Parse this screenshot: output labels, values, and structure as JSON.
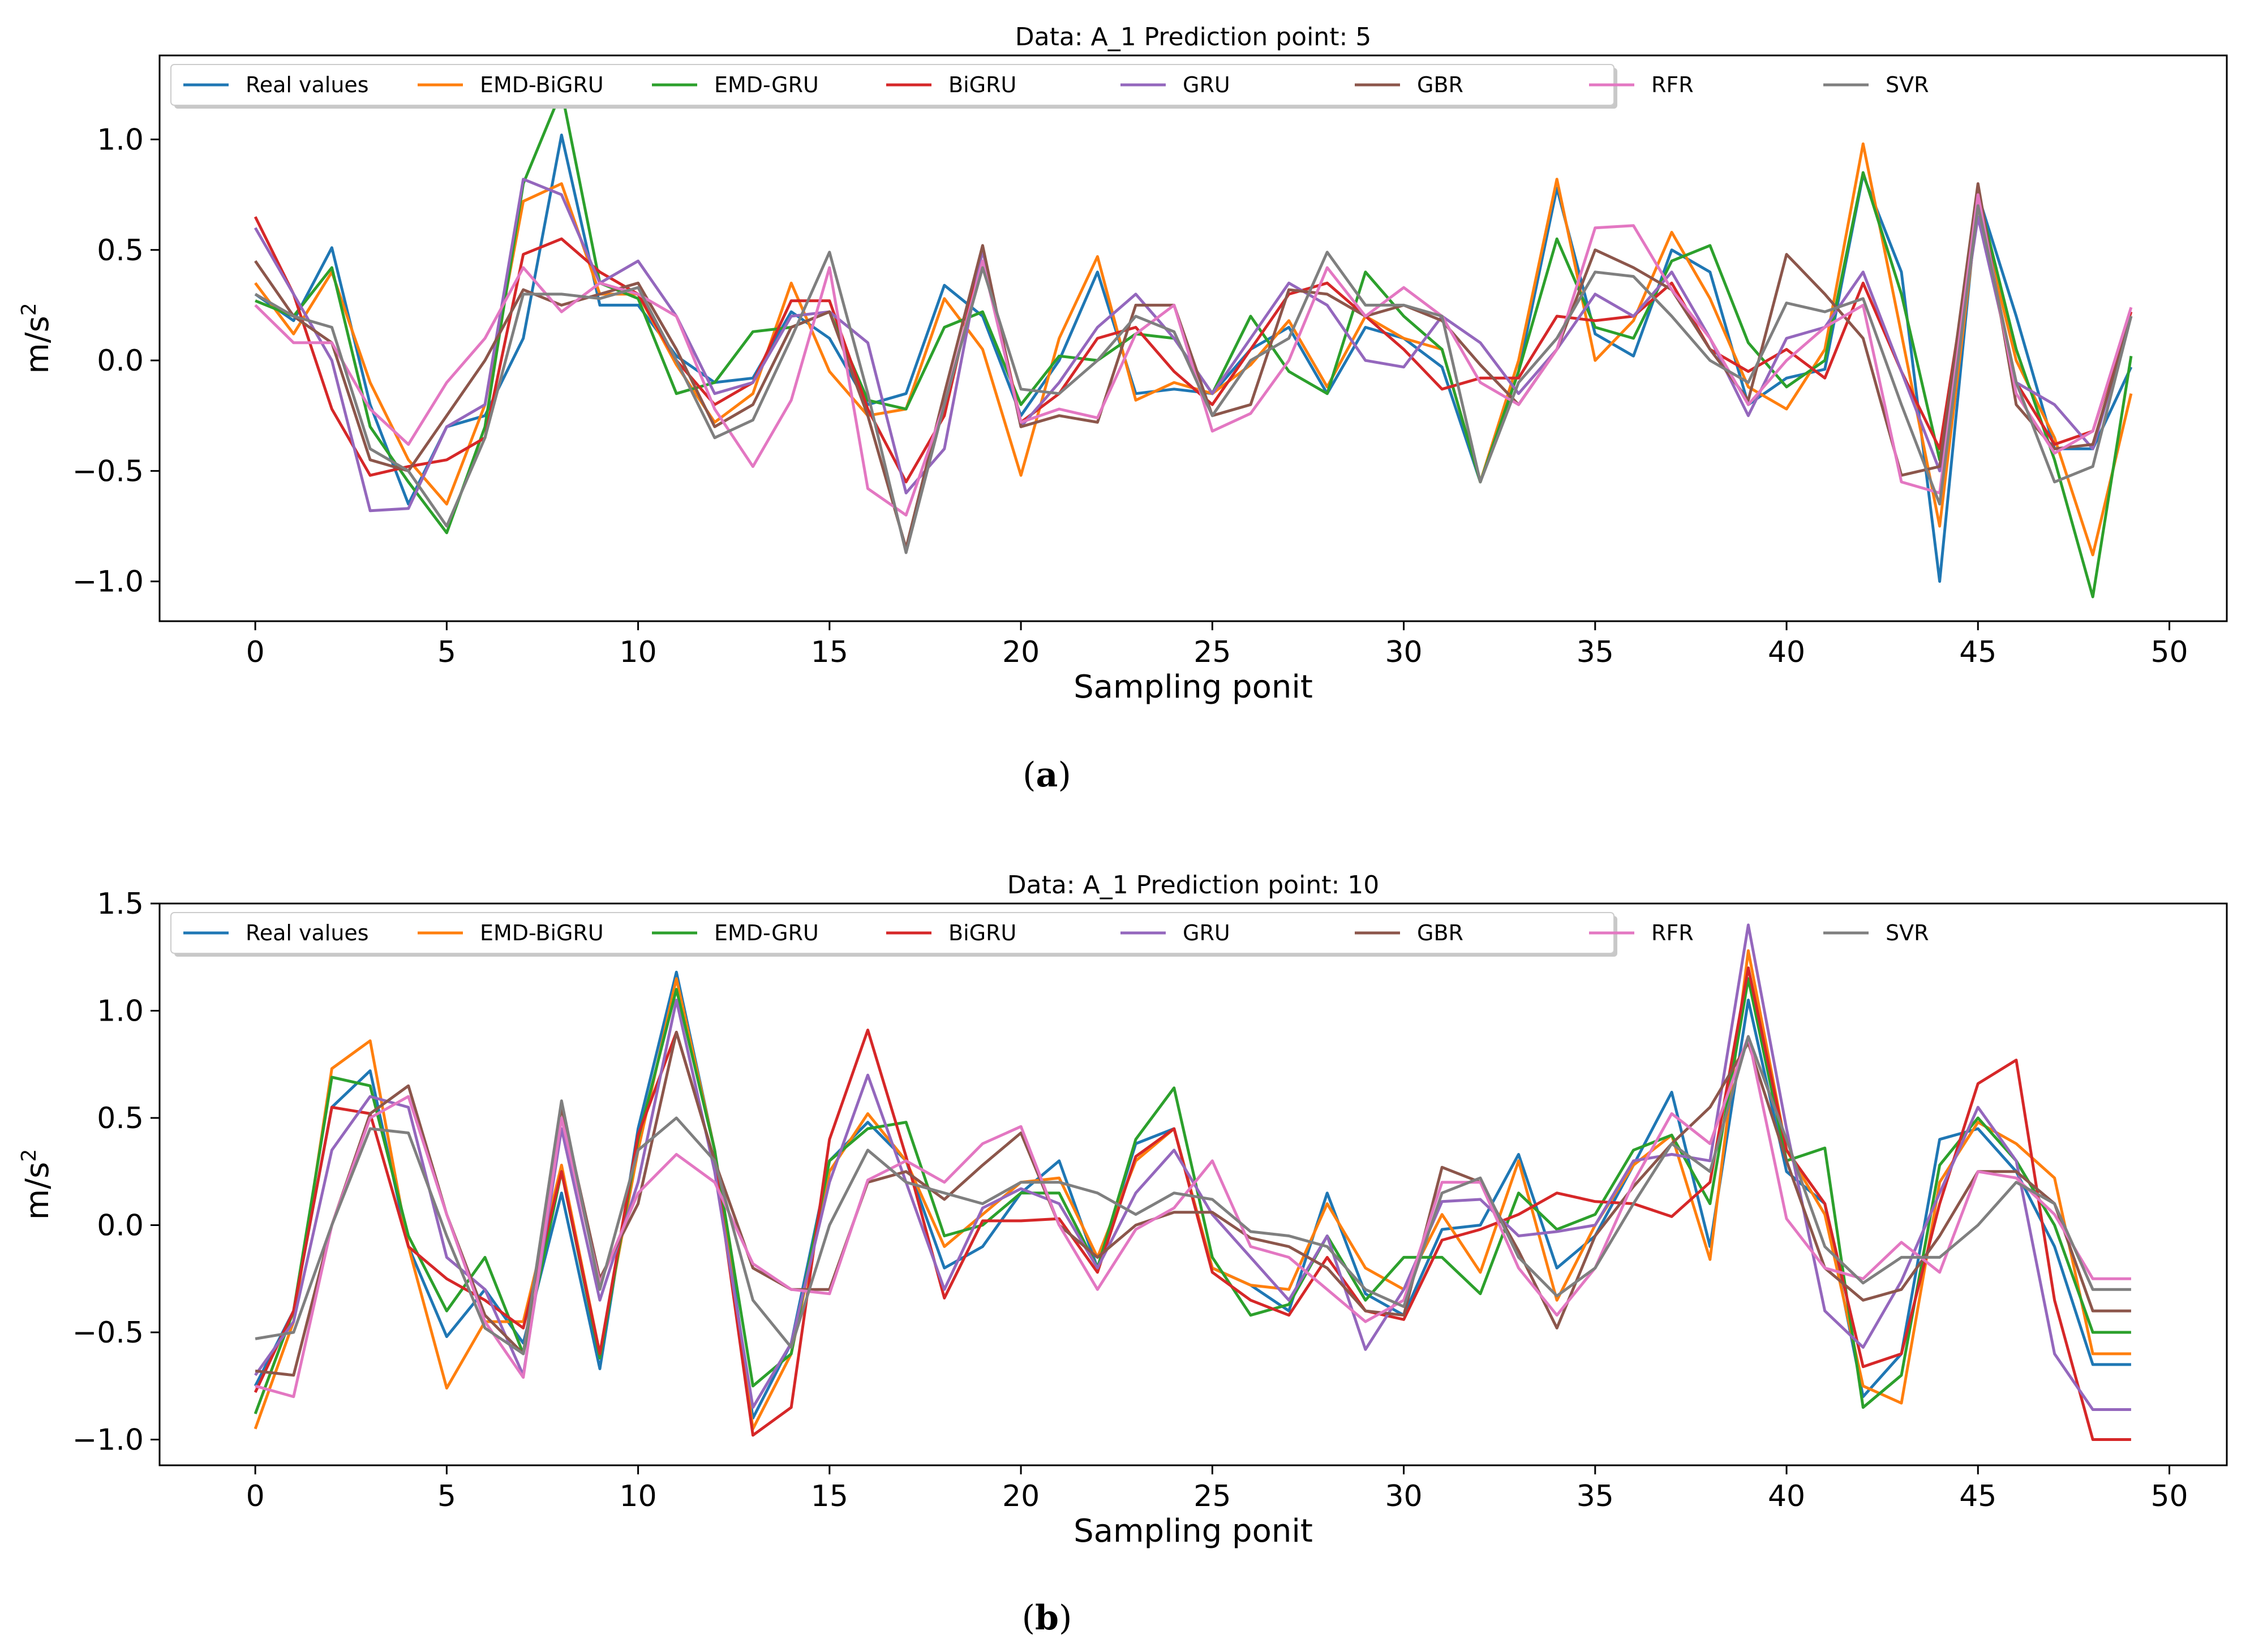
{
  "colors": {
    "Real values": "#1f77b4",
    "EMD-BiGRU": "#ff7f0e",
    "EMD-GRU": "#2ca02c",
    "BiGRU": "#d62728",
    "GRU": "#9467bd",
    "GBR": "#8c564b",
    "RFR": "#e377c2",
    "SVR": "#7f7f7f"
  },
  "chart_data": [
    {
      "type": "line",
      "caption_letter": "a",
      "title": "Data: A_1 Prediction point: 5",
      "xlabel": "Sampling ponit",
      "ylabel_base": "m/s",
      "ylabel_sup": "2",
      "xlim": [
        -2.5,
        51.5
      ],
      "ylim": [
        -1.18,
        1.38
      ],
      "xticks": [
        0,
        5,
        10,
        15,
        20,
        25,
        30,
        35,
        40,
        45,
        50
      ],
      "yticks": [
        -1.0,
        -0.5,
        0.0,
        0.5,
        1.0
      ],
      "ytick_labels": [
        "−1.0",
        "−0.5",
        "0.0",
        "0.5",
        "1.0"
      ],
      "legend": [
        "Real values",
        "EMD-BiGRU",
        "EMD-GRU",
        "BiGRU",
        "GRU",
        "GBR",
        "RFR",
        "SVR"
      ],
      "series": [
        {
          "name": "Real values",
          "values": [
            0.3,
            0.18,
            0.51,
            -0.2,
            -0.65,
            -0.3,
            -0.25,
            0.1,
            1.02,
            0.25,
            0.25,
            0.02,
            -0.1,
            -0.08,
            0.22,
            0.1,
            -0.2,
            -0.15,
            0.34,
            0.2,
            -0.25,
            0.0,
            0.4,
            -0.15,
            -0.13,
            -0.15,
            0.05,
            0.15,
            -0.15,
            0.15,
            0.1,
            -0.03,
            -0.55,
            -0.05,
            0.78,
            0.12,
            0.02,
            0.5,
            0.4,
            -0.2,
            -0.08,
            -0.04,
            0.84,
            0.4,
            -1.0,
            0.75,
            0.2,
            -0.4,
            -0.4,
            -0.03
          ]
        },
        {
          "name": "EMD-BiGRU",
          "values": [
            0.35,
            0.12,
            0.4,
            -0.1,
            -0.45,
            -0.65,
            -0.2,
            0.72,
            0.8,
            0.3,
            0.3,
            -0.02,
            -0.28,
            -0.15,
            0.35,
            -0.05,
            -0.25,
            -0.22,
            0.28,
            0.05,
            -0.52,
            0.1,
            0.47,
            -0.18,
            -0.1,
            -0.15,
            -0.02,
            0.18,
            -0.12,
            0.2,
            0.1,
            0.05,
            -0.55,
            0.0,
            0.82,
            0.0,
            0.18,
            0.58,
            0.28,
            -0.12,
            -0.22,
            0.05,
            0.98,
            0.12,
            -0.75,
            0.7,
            0.0,
            -0.35,
            -0.88,
            -0.15
          ]
        },
        {
          "name": "EMD-GRU",
          "values": [
            0.27,
            0.2,
            0.42,
            -0.3,
            -0.55,
            -0.78,
            -0.3,
            0.8,
            1.22,
            0.35,
            0.28,
            -0.15,
            -0.1,
            0.13,
            0.15,
            0.22,
            -0.18,
            -0.22,
            0.15,
            0.22,
            -0.2,
            0.02,
            0.0,
            0.12,
            0.1,
            -0.15,
            0.2,
            -0.05,
            -0.15,
            0.4,
            0.2,
            0.05,
            -0.55,
            -0.05,
            0.55,
            0.15,
            0.1,
            0.45,
            0.52,
            0.08,
            -0.12,
            0.0,
            0.85,
            0.3,
            -0.45,
            0.75,
            0.05,
            -0.45,
            -1.07,
            0.02
          ]
        },
        {
          "name": "BiGRU",
          "values": [
            0.65,
            0.3,
            -0.22,
            -0.52,
            -0.48,
            -0.45,
            -0.35,
            0.48,
            0.55,
            0.4,
            0.3,
            0.0,
            -0.2,
            -0.1,
            0.27,
            0.27,
            -0.22,
            -0.55,
            -0.25,
            0.5,
            -0.28,
            -0.15,
            0.1,
            0.15,
            -0.05,
            -0.2,
            0.05,
            0.3,
            0.35,
            0.2,
            0.05,
            -0.13,
            -0.08,
            -0.08,
            0.2,
            0.18,
            0.2,
            0.35,
            0.05,
            -0.05,
            0.05,
            -0.08,
            0.35,
            -0.05,
            -0.4,
            0.7,
            -0.1,
            -0.38,
            -0.32,
            0.22
          ]
        },
        {
          "name": "GRU",
          "values": [
            0.6,
            0.3,
            0.0,
            -0.68,
            -0.67,
            -0.3,
            -0.2,
            0.82,
            0.75,
            0.35,
            0.45,
            0.2,
            -0.15,
            -0.1,
            0.2,
            0.22,
            0.08,
            -0.6,
            -0.4,
            0.5,
            -0.3,
            -0.1,
            0.15,
            0.3,
            0.1,
            -0.15,
            0.1,
            0.35,
            0.25,
            0.0,
            -0.03,
            0.2,
            0.08,
            -0.15,
            0.05,
            0.3,
            0.2,
            0.4,
            0.1,
            -0.25,
            0.1,
            0.15,
            0.4,
            -0.05,
            -0.5,
            0.65,
            -0.1,
            -0.2,
            -0.4,
            0.2
          ]
        },
        {
          "name": "GBR",
          "values": [
            0.45,
            0.2,
            0.08,
            -0.45,
            -0.5,
            -0.25,
            0.0,
            0.32,
            0.25,
            0.3,
            0.35,
            0.05,
            -0.3,
            -0.2,
            0.15,
            0.22,
            -0.25,
            -0.85,
            -0.15,
            0.52,
            -0.3,
            -0.25,
            -0.28,
            0.25,
            0.25,
            -0.25,
            -0.2,
            0.32,
            0.3,
            0.2,
            0.25,
            0.18,
            -0.02,
            -0.2,
            0.05,
            0.5,
            0.42,
            0.32,
            0.05,
            -0.18,
            0.48,
            0.3,
            0.1,
            -0.52,
            -0.48,
            0.8,
            -0.2,
            -0.4,
            -0.38,
            0.2
          ]
        },
        {
          "name": "RFR",
          "values": [
            0.25,
            0.08,
            0.08,
            -0.22,
            -0.38,
            -0.1,
            0.1,
            0.42,
            0.22,
            0.35,
            0.3,
            0.2,
            -0.22,
            -0.48,
            -0.18,
            0.42,
            -0.58,
            -0.7,
            -0.2,
            0.45,
            -0.28,
            -0.22,
            -0.26,
            0.12,
            0.25,
            -0.32,
            -0.24,
            0.0,
            0.42,
            0.2,
            0.33,
            0.2,
            -0.1,
            -0.2,
            0.05,
            0.6,
            0.61,
            0.32,
            0.1,
            -0.2,
            0.0,
            0.15,
            0.25,
            -0.55,
            -0.6,
            0.75,
            -0.15,
            -0.42,
            -0.32,
            0.24
          ]
        },
        {
          "name": "SVR",
          "values": [
            0.3,
            0.2,
            0.15,
            -0.4,
            -0.5,
            -0.75,
            -0.35,
            0.3,
            0.3,
            0.28,
            0.33,
            0.0,
            -0.35,
            -0.27,
            0.1,
            0.49,
            -0.15,
            -0.87,
            -0.2,
            0.42,
            -0.13,
            -0.15,
            0.0,
            0.2,
            0.13,
            -0.25,
            0.0,
            0.1,
            0.49,
            0.25,
            0.25,
            0.2,
            -0.55,
            -0.1,
            0.1,
            0.4,
            0.38,
            0.2,
            0.0,
            -0.1,
            0.26,
            0.22,
            0.28,
            -0.2,
            -0.65,
            0.7,
            -0.1,
            -0.55,
            -0.48,
            0.2
          ]
        }
      ]
    },
    {
      "type": "line",
      "caption_letter": "b",
      "title": "Data: A_1 Prediction point: 10",
      "xlabel": "Sampling ponit",
      "ylabel_base": "m/s",
      "ylabel_sup": "2",
      "xlim": [
        -2.5,
        51.5
      ],
      "ylim": [
        -1.12,
        1.5
      ],
      "xticks": [
        0,
        5,
        10,
        15,
        20,
        25,
        30,
        35,
        40,
        45,
        50
      ],
      "yticks": [
        -1.0,
        -0.5,
        0.0,
        0.5,
        1.0,
        1.5
      ],
      "ytick_labels": [
        "−1.0",
        "−0.5",
        "0.0",
        "0.5",
        "1.0",
        "1.5"
      ],
      "legend": [
        "Real values",
        "EMD-BiGRU",
        "EMD-GRU",
        "BiGRU",
        "GRU",
        "GBR",
        "RFR",
        "SVR"
      ],
      "series": [
        {
          "name": "Real values",
          "values": [
            -0.75,
            -0.4,
            0.55,
            0.72,
            -0.1,
            -0.52,
            -0.3,
            -0.55,
            0.15,
            -0.67,
            0.45,
            1.18,
            0.35,
            -0.9,
            -0.55,
            0.3,
            0.48,
            0.3,
            -0.2,
            -0.1,
            0.15,
            0.3,
            -0.2,
            0.38,
            0.45,
            -0.2,
            -0.28,
            -0.4,
            0.15,
            -0.32,
            -0.42,
            -0.02,
            0.0,
            0.33,
            -0.2,
            -0.05,
            0.28,
            0.62,
            -0.1,
            1.05,
            0.25,
            0.1,
            -0.8,
            -0.6,
            0.4,
            0.45,
            0.25,
            -0.1,
            -0.65,
            -0.65
          ]
        },
        {
          "name": "EMD-BiGRU",
          "values": [
            -0.95,
            -0.45,
            0.73,
            0.86,
            -0.1,
            -0.76,
            -0.45,
            -0.45,
            0.28,
            -0.6,
            0.35,
            1.15,
            0.35,
            -0.95,
            -0.6,
            0.25,
            0.52,
            0.3,
            -0.1,
            0.05,
            0.2,
            0.22,
            -0.15,
            0.3,
            0.45,
            -0.2,
            -0.28,
            -0.3,
            0.1,
            -0.2,
            -0.3,
            0.05,
            -0.22,
            0.3,
            -0.35,
            0.0,
            0.28,
            0.42,
            -0.16,
            1.28,
            0.35,
            0.05,
            -0.75,
            -0.83,
            0.2,
            0.48,
            0.38,
            0.22,
            -0.6,
            -0.6
          ]
        },
        {
          "name": "EMD-GRU",
          "values": [
            -0.88,
            -0.4,
            0.69,
            0.65,
            -0.05,
            -0.4,
            -0.15,
            -0.6,
            0.25,
            -0.62,
            0.4,
            1.1,
            0.35,
            -0.75,
            -0.6,
            0.3,
            0.45,
            0.48,
            -0.05,
            0.0,
            0.15,
            0.15,
            -0.2,
            0.4,
            0.64,
            -0.15,
            -0.42,
            -0.37,
            -0.05,
            -0.35,
            -0.15,
            -0.15,
            -0.32,
            0.15,
            -0.02,
            0.05,
            0.35,
            0.42,
            0.1,
            1.15,
            0.3,
            0.36,
            -0.85,
            -0.7,
            0.28,
            0.5,
            0.3,
            0.0,
            -0.5,
            -0.5
          ]
        },
        {
          "name": "BiGRU",
          "values": [
            -0.78,
            -0.4,
            0.55,
            0.52,
            -0.1,
            -0.25,
            -0.35,
            -0.48,
            0.25,
            -0.6,
            0.42,
            0.9,
            0.3,
            -0.98,
            -0.85,
            0.4,
            0.91,
            0.32,
            -0.34,
            0.02,
            0.02,
            0.03,
            -0.22,
            0.32,
            0.45,
            -0.22,
            -0.35,
            -0.42,
            -0.15,
            -0.4,
            -0.44,
            -0.07,
            -0.02,
            0.05,
            0.15,
            0.11,
            0.1,
            0.04,
            0.2,
            1.2,
            0.35,
            0.1,
            -0.66,
            -0.6,
            0.1,
            0.66,
            0.77,
            -0.35,
            -1.0,
            -1.0
          ]
        },
        {
          "name": "GRU",
          "values": [
            -0.7,
            -0.45,
            0.35,
            0.6,
            0.55,
            -0.15,
            -0.3,
            -0.7,
            0.45,
            -0.35,
            0.2,
            1.05,
            0.25,
            -0.85,
            -0.55,
            0.2,
            0.7,
            0.2,
            -0.3,
            0.08,
            0.17,
            0.1,
            -0.2,
            0.15,
            0.35,
            0.05,
            -0.15,
            -0.35,
            -0.05,
            -0.58,
            -0.3,
            0.11,
            0.12,
            -0.05,
            -0.03,
            0.0,
            0.3,
            0.33,
            0.3,
            1.4,
            0.45,
            -0.4,
            -0.57,
            -0.26,
            0.15,
            0.55,
            0.3,
            -0.6,
            -0.86,
            -0.86
          ]
        },
        {
          "name": "GBR",
          "values": [
            -0.68,
            -0.7,
            0.0,
            0.52,
            0.65,
            0.05,
            -0.42,
            -0.6,
            0.55,
            -0.25,
            0.1,
            0.9,
            0.3,
            -0.2,
            -0.3,
            -0.3,
            0.2,
            0.25,
            0.12,
            0.28,
            0.43,
            0.0,
            -0.15,
            0.0,
            0.06,
            0.06,
            -0.06,
            -0.1,
            -0.2,
            -0.4,
            -0.42,
            0.27,
            0.2,
            -0.12,
            -0.48,
            -0.05,
            0.18,
            0.38,
            0.55,
            0.85,
            0.3,
            -0.2,
            -0.35,
            -0.3,
            -0.05,
            0.25,
            0.25,
            0.1,
            -0.4,
            -0.4
          ]
        },
        {
          "name": "RFR",
          "values": [
            -0.75,
            -0.8,
            0.0,
            0.5,
            0.6,
            0.05,
            -0.45,
            -0.71,
            0.5,
            -0.27,
            0.15,
            0.33,
            0.2,
            -0.18,
            -0.3,
            -0.32,
            0.21,
            0.3,
            0.2,
            0.38,
            0.46,
            0.0,
            -0.3,
            -0.02,
            0.08,
            0.3,
            -0.1,
            -0.15,
            -0.3,
            -0.45,
            -0.35,
            0.2,
            0.2,
            -0.2,
            -0.42,
            -0.2,
            0.2,
            0.52,
            0.38,
            0.88,
            0.03,
            -0.2,
            -0.25,
            -0.08,
            -0.22,
            0.25,
            0.22,
            0.05,
            -0.25,
            -0.25
          ]
        },
        {
          "name": "SVR",
          "values": [
            -0.53,
            -0.5,
            0.0,
            0.45,
            0.43,
            -0.05,
            -0.48,
            -0.6,
            0.58,
            -0.3,
            0.35,
            0.5,
            0.3,
            -0.35,
            -0.57,
            0.0,
            0.35,
            0.2,
            0.15,
            0.1,
            0.2,
            0.2,
            0.15,
            0.05,
            0.15,
            0.12,
            -0.03,
            -0.05,
            -0.1,
            -0.3,
            -0.38,
            0.15,
            0.22,
            -0.15,
            -0.33,
            -0.2,
            0.1,
            0.38,
            0.25,
            0.88,
            0.4,
            -0.1,
            -0.27,
            -0.15,
            -0.15,
            0.0,
            0.2,
            0.1,
            -0.3,
            -0.3
          ]
        }
      ]
    }
  ]
}
